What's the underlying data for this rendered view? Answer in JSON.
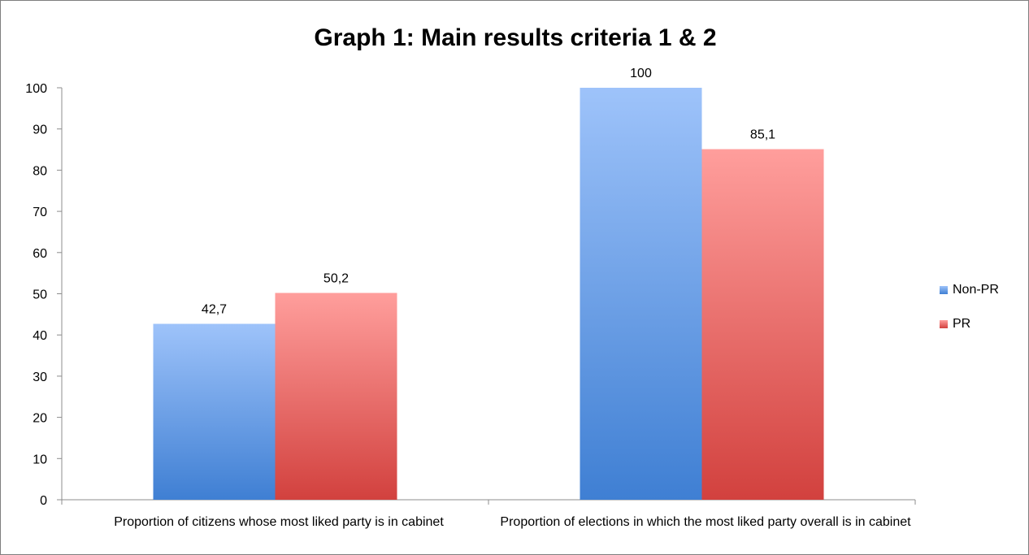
{
  "chart_data": {
    "type": "bar",
    "title": "Graph 1: Main results criteria 1 & 2",
    "xlabel": "",
    "ylabel": "",
    "ylim": [
      0,
      100
    ],
    "yticks": [
      "0",
      "10",
      "20",
      "30",
      "40",
      "50",
      "60",
      "70",
      "80",
      "90",
      "100"
    ],
    "categories": [
      "Proportion of citizens whose most liked party is in cabinet",
      "Proportion of elections in which the most liked party overall is in cabinet"
    ],
    "series": [
      {
        "name": "Non-PR",
        "values": [
          42.7,
          100
        ],
        "labels": [
          "42,7",
          "100"
        ],
        "color_light": "#9ec3fa",
        "color_dark": "#3f7fd3"
      },
      {
        "name": "PR",
        "values": [
          50.2,
          85.1
        ],
        "labels": [
          "50,2",
          "85,1"
        ],
        "color_light": "#ff9e9c",
        "color_dark": "#d2413e"
      }
    ],
    "grid": false,
    "legend_position": "right"
  }
}
